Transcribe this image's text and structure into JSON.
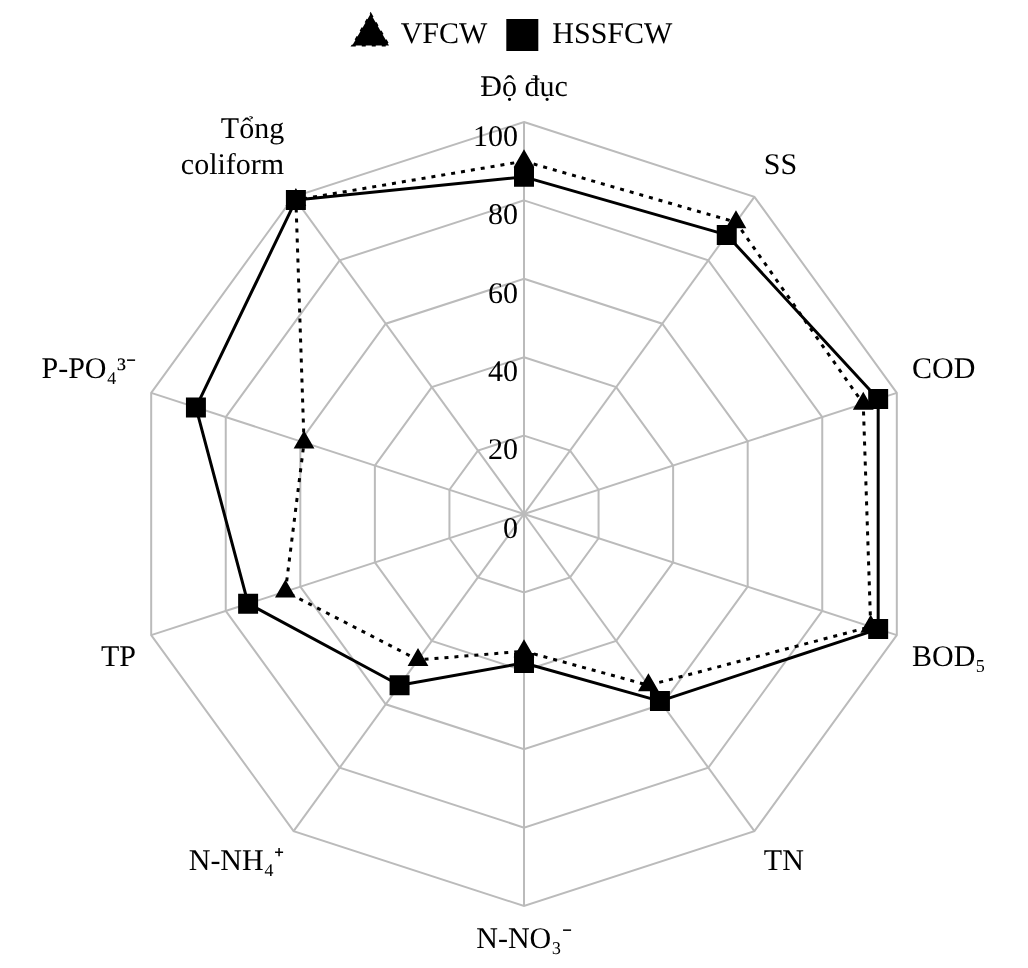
{
  "chart_data": {
    "type": "radar",
    "categories": [
      "Độ đục",
      "SS",
      "COD",
      "BOD₅",
      "TN",
      "N-NO₃⁻",
      "N-NH₄⁺",
      "TP",
      "P-PO₄³⁻",
      "Tổng coliform"
    ],
    "series": [
      {
        "name": "VFCW",
        "color": "#000000",
        "marker": "triangle",
        "line_style": "dotted",
        "values": [
          90,
          92,
          91,
          93,
          54,
          35,
          46,
          64,
          59,
          99
        ]
      },
      {
        "name": "HSSFCW",
        "color": "#000000",
        "marker": "square",
        "line_style": "solid",
        "values": [
          86,
          88,
          95,
          95,
          59,
          38,
          54,
          74,
          88,
          99
        ]
      }
    ],
    "ylim": [
      0,
      100
    ],
    "yticks": [
      0,
      20,
      40,
      60,
      80,
      100
    ],
    "grid": true,
    "legend": "top"
  }
}
